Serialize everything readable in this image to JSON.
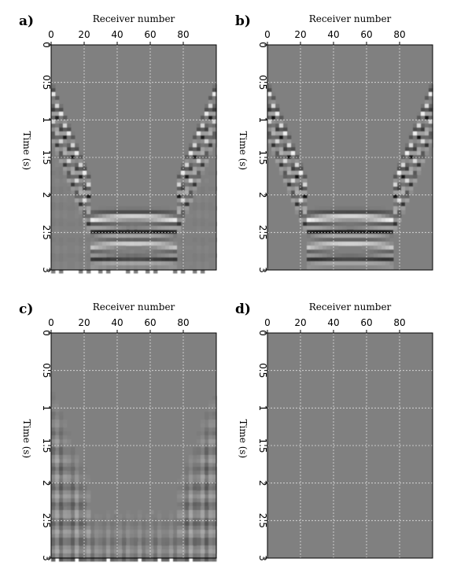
{
  "chart_data": [
    {
      "type": "heatmap",
      "panel": "a)",
      "xlabel": "Receiver number",
      "ylabel": "Time (s)",
      "x_ticks": [
        0,
        20,
        40,
        60,
        80
      ],
      "y_ticks": [
        0,
        0.5,
        1,
        1.5,
        2,
        2.5,
        3
      ],
      "xlim": [
        0,
        100
      ],
      "ylim": [
        0,
        3
      ],
      "grid": true,
      "colormap": "gray",
      "content": "observed"
    },
    {
      "type": "heatmap",
      "panel": "b)",
      "xlabel": "Receiver number",
      "ylabel": "Time (s)",
      "x_ticks": [
        0,
        20,
        40,
        60,
        80
      ],
      "y_ticks": [
        0,
        0.5,
        1,
        1.5,
        2,
        2.5,
        3
      ],
      "xlim": [
        0,
        100
      ],
      "ylim": [
        0,
        3
      ],
      "grid": true,
      "colormap": "gray",
      "content": "clean"
    },
    {
      "type": "heatmap",
      "panel": "c)",
      "xlabel": "Receiver number",
      "ylabel": "Time (s)",
      "x_ticks": [
        0,
        20,
        40,
        60,
        80
      ],
      "y_ticks": [
        0,
        0.5,
        1,
        1.5,
        2,
        2.5,
        3
      ],
      "xlim": [
        0,
        100
      ],
      "ylim": [
        0,
        3
      ],
      "grid": true,
      "colormap": "gray",
      "content": "residual"
    },
    {
      "type": "heatmap",
      "panel": "d)",
      "xlabel": "Receiver number",
      "ylabel": "Time (s)",
      "x_ticks": [
        0,
        20,
        40,
        60,
        80
      ],
      "y_ticks": [
        0,
        0.5,
        1,
        1.5,
        2,
        2.5,
        3
      ],
      "xlim": [
        0,
        100
      ],
      "ylim": [
        0,
        3
      ],
      "grid": true,
      "colormap": "gray",
      "content": "empty"
    }
  ]
}
